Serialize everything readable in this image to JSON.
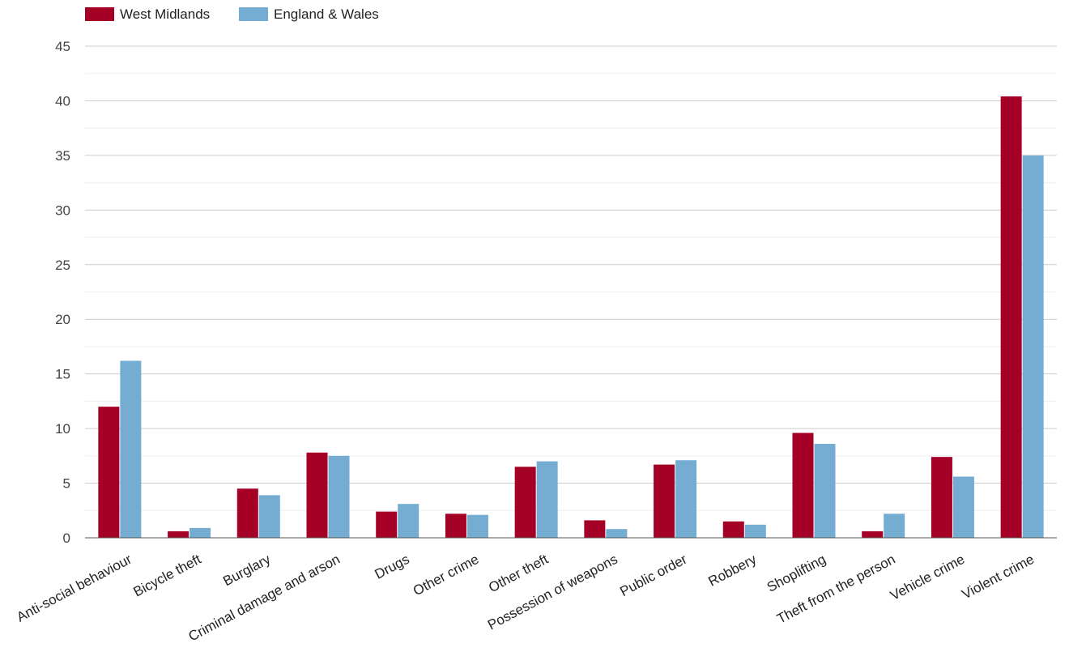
{
  "chart_data": {
    "type": "bar",
    "title": "",
    "xlabel": "",
    "ylabel": "",
    "ylim": [
      0,
      45
    ],
    "yticks": [
      0,
      5,
      10,
      15,
      20,
      25,
      30,
      35,
      40,
      45
    ],
    "grid": true,
    "legend_position": "top-left",
    "categories": [
      "Anti-social behaviour",
      "Bicycle theft",
      "Burglary",
      "Criminal damage and arson",
      "Drugs",
      "Other crime",
      "Other theft",
      "Possession of weapons",
      "Public order",
      "Robbery",
      "Shoplifting",
      "Theft from the person",
      "Vehicle crime",
      "Violent crime"
    ],
    "series": [
      {
        "name": "West Midlands",
        "color": "#a50026",
        "values": [
          12.0,
          0.6,
          4.5,
          7.8,
          2.4,
          2.2,
          6.5,
          1.6,
          6.7,
          1.5,
          9.6,
          0.6,
          7.4,
          40.4
        ]
      },
      {
        "name": "England & Wales",
        "color": "#74add1",
        "values": [
          16.2,
          0.9,
          3.9,
          7.5,
          3.1,
          2.1,
          7.0,
          0.8,
          7.1,
          1.2,
          8.6,
          2.2,
          5.6,
          35.0
        ]
      }
    ]
  }
}
